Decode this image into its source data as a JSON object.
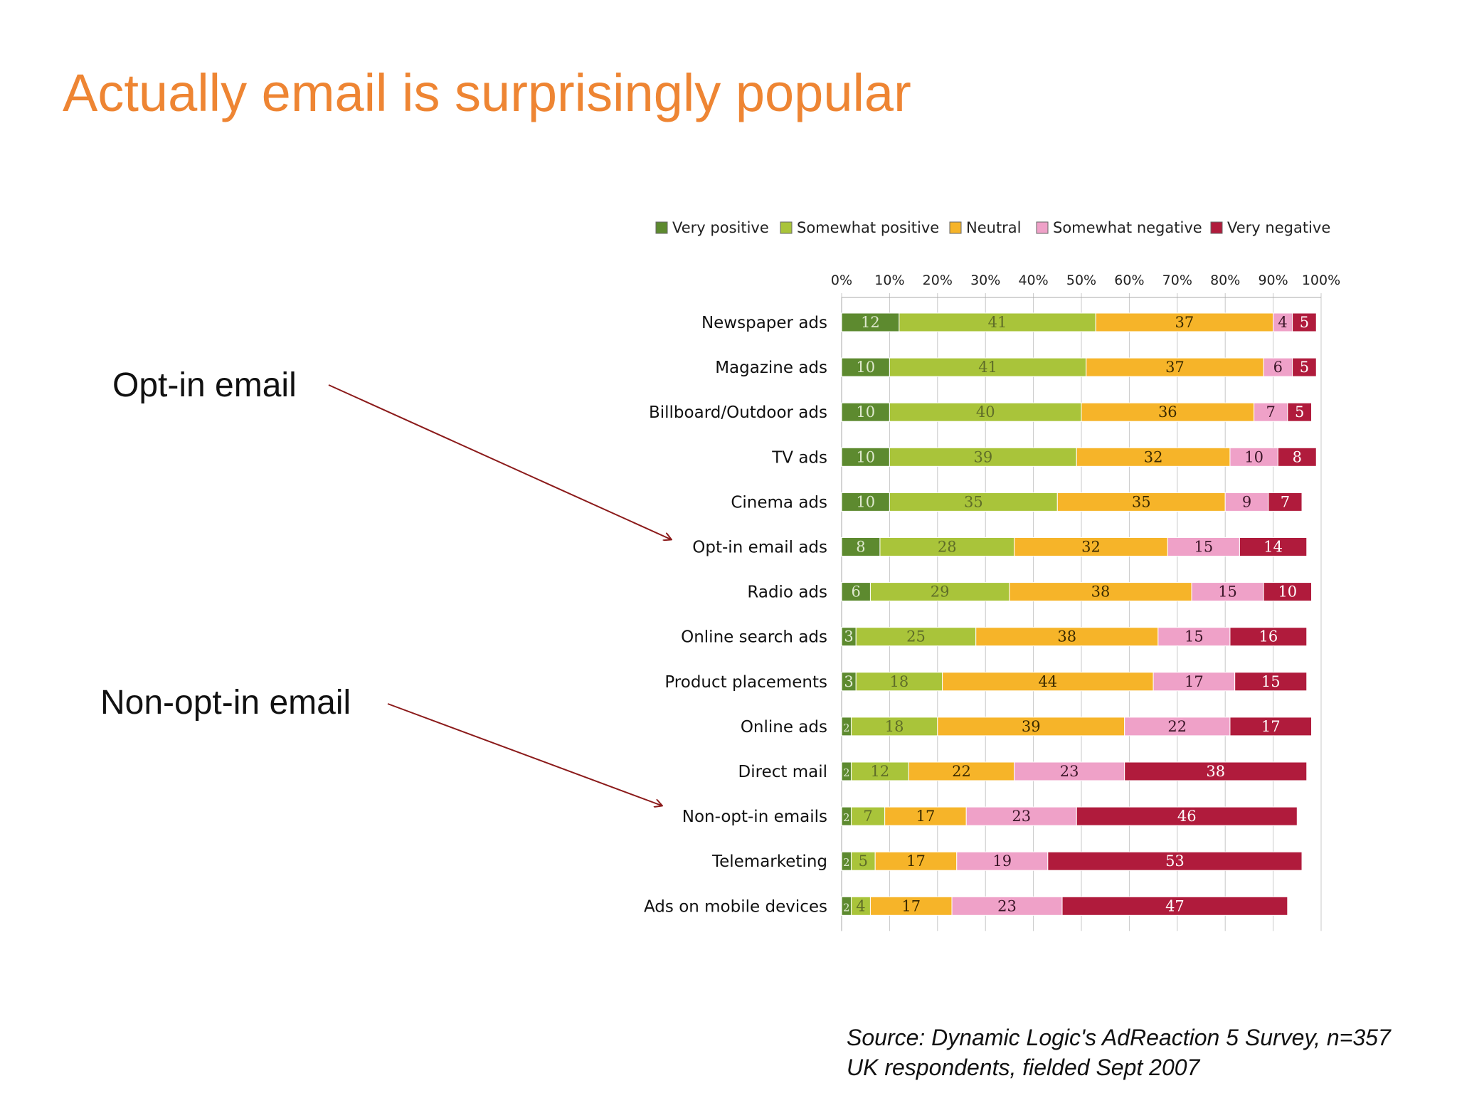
{
  "title": "Actually email is surprisingly popular",
  "callouts": [
    "Opt-in email",
    "Non-opt-in email"
  ],
  "source": {
    "line1": "Source: Dynamic Logic's AdReaction 5 Survey, n=357",
    "line2": "UK respondents, fielded Sept 2007"
  },
  "colors": {
    "title": "#ee8533",
    "arrow": "#8b1a1a",
    "very_positive": "#5d8a2f",
    "somewhat_positive": "#a9c43a",
    "neutral": "#f6b429",
    "somewhat_negative": "#efa1c8",
    "very_negative": "#b01b3c"
  },
  "chart_data": {
    "type": "bar",
    "orientation": "horizontal",
    "stacked": true,
    "categories": [
      "Newspaper ads",
      "Magazine ads",
      "Billboard/Outdoor ads",
      "TV ads",
      "Cinema ads",
      "Opt-in email ads",
      "Radio ads",
      "Online search ads",
      "Product placements",
      "Online ads",
      "Direct mail",
      "Non-opt-in emails",
      "Telemarketing",
      "Ads on mobile devices"
    ],
    "series": [
      {
        "name": "Very positive",
        "values": [
          12,
          10,
          10,
          10,
          10,
          8,
          6,
          3,
          3,
          2,
          2,
          2,
          2,
          2
        ]
      },
      {
        "name": "Somewhat positive",
        "values": [
          41,
          41,
          40,
          39,
          35,
          28,
          29,
          25,
          18,
          18,
          12,
          7,
          5,
          4
        ]
      },
      {
        "name": "Neutral",
        "values": [
          37,
          37,
          36,
          32,
          35,
          32,
          38,
          38,
          44,
          39,
          22,
          17,
          17,
          17
        ]
      },
      {
        "name": "Somewhat negative",
        "values": [
          4,
          6,
          7,
          10,
          9,
          15,
          15,
          15,
          17,
          22,
          23,
          23,
          19,
          23
        ]
      },
      {
        "name": "Very negative",
        "values": [
          5,
          5,
          5,
          8,
          7,
          14,
          10,
          16,
          15,
          17,
          38,
          46,
          53,
          47
        ]
      }
    ],
    "x_ticks": [
      "0%",
      "10%",
      "20%",
      "30%",
      "40%",
      "50%",
      "60%",
      "70%",
      "80%",
      "90%",
      "100%"
    ],
    "xlim": [
      0,
      100
    ],
    "legend_position": "top",
    "title": "",
    "xlabel": "",
    "ylabel": ""
  }
}
